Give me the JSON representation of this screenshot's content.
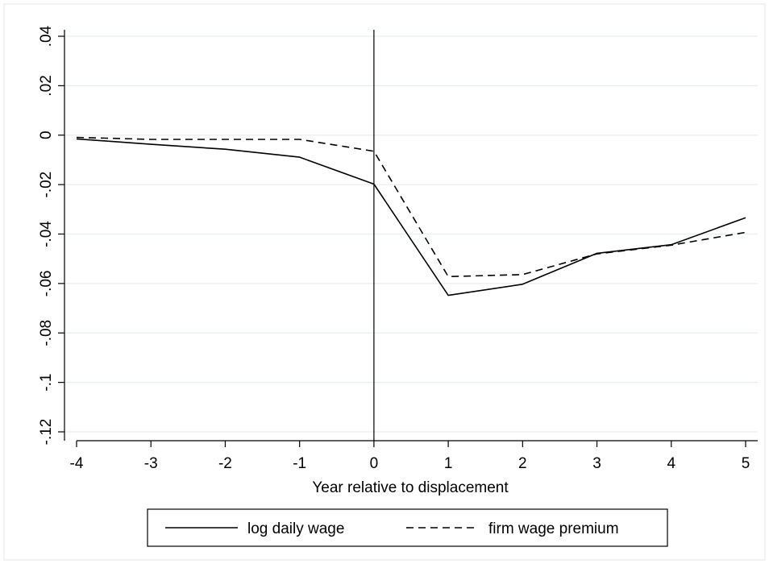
{
  "chart_data": {
    "type": "line",
    "xlabel": "Year relative to displacement",
    "ylabel": "",
    "x": [
      -4,
      -3,
      -2,
      -1,
      0,
      1,
      2,
      3,
      4,
      5
    ],
    "xlim": [
      -4,
      5
    ],
    "ylim": [
      -0.12,
      0.04
    ],
    "x_ticks": [
      {
        "value": -4,
        "label": "-4"
      },
      {
        "value": -3,
        "label": "-3"
      },
      {
        "value": -2,
        "label": "-2"
      },
      {
        "value": -1,
        "label": "-1"
      },
      {
        "value": 0,
        "label": "0"
      },
      {
        "value": 1,
        "label": "1"
      },
      {
        "value": 2,
        "label": "2"
      },
      {
        "value": 3,
        "label": "3"
      },
      {
        "value": 4,
        "label": "4"
      },
      {
        "value": 5,
        "label": "5"
      }
    ],
    "y_ticks": [
      {
        "value": 0.04,
        "label": ".04"
      },
      {
        "value": 0.02,
        "label": ".02"
      },
      {
        "value": 0,
        "label": "0"
      },
      {
        "value": -0.02,
        "label": "-.02"
      },
      {
        "value": -0.04,
        "label": "-.04"
      },
      {
        "value": -0.06,
        "label": "-.06"
      },
      {
        "value": -0.08,
        "label": "-.08"
      },
      {
        "value": -0.1,
        "label": "-.1"
      },
      {
        "value": -0.12,
        "label": "-.12"
      }
    ],
    "grid": "horizontal",
    "reference_line_x": 0,
    "legend_position": "bottom",
    "series": [
      {
        "name": "log daily wage",
        "style": "solid",
        "color": "#000000",
        "values": [
          -0.0015,
          -0.0037,
          -0.0057,
          -0.0089,
          -0.0198,
          -0.0648,
          -0.0603,
          -0.0478,
          -0.0443,
          -0.0334
        ]
      },
      {
        "name": "firm wage premium",
        "style": "dashed",
        "color": "#000000",
        "values": [
          -0.0009,
          -0.0017,
          -0.0017,
          -0.0017,
          -0.0065,
          -0.0572,
          -0.0564,
          -0.048,
          -0.0445,
          -0.0393
        ]
      }
    ]
  },
  "colors": {
    "background": "#ffffff",
    "plot_background": "#ffffff",
    "frame": "#e6e6e6",
    "grid": "#e8eeee",
    "axis": "#000000",
    "series": "#000000"
  }
}
